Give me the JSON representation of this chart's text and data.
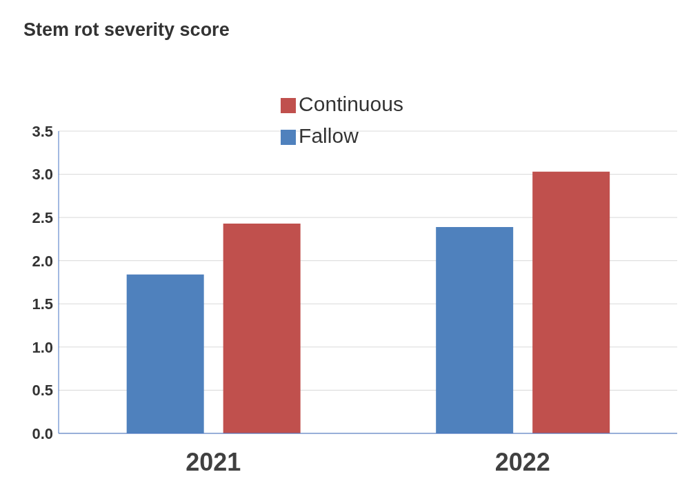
{
  "chart_data": {
    "type": "bar",
    "ylabel": "Stem rot severity score",
    "categories": [
      "2021",
      "2022"
    ],
    "series": [
      {
        "name": "Fallow",
        "color": "#4f81bd",
        "values": [
          1.84,
          2.39
        ]
      },
      {
        "name": "Continuous",
        "color": "#c0504d",
        "values": [
          2.43,
          3.03
        ]
      }
    ],
    "ylim": [
      0,
      3.5
    ],
    "yticks": [
      {
        "value": 0,
        "label": "0.0"
      },
      {
        "value": 0.5,
        "label": "0.5"
      },
      {
        "value": 1,
        "label": "1.0"
      },
      {
        "value": 1.5,
        "label": "1.5"
      },
      {
        "value": 2,
        "label": "2.0"
      },
      {
        "value": 2.5,
        "label": "2.5"
      },
      {
        "value": 3,
        "label": "3.0"
      },
      {
        "value": 3.5,
        "label": "3.5"
      }
    ],
    "grid": "y",
    "legend": "top"
  }
}
